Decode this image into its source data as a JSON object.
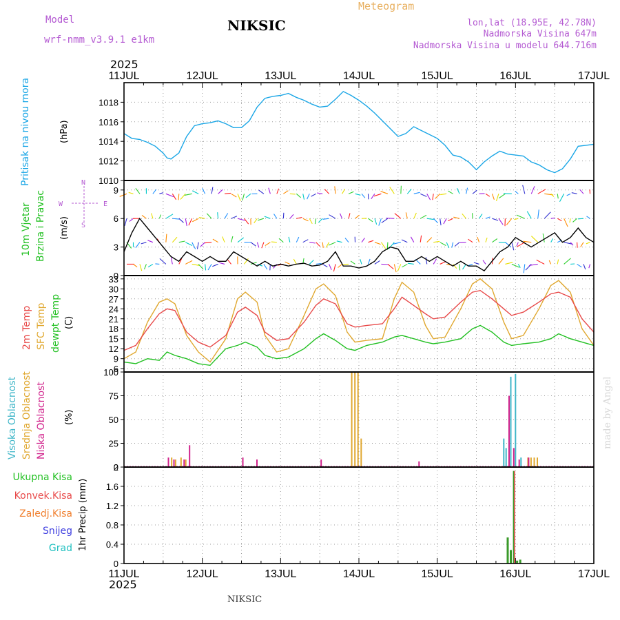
{
  "header": {
    "model_label": "Model",
    "model_name": "wrf-nmm_v3.9.1 e1km",
    "station": "NIKSIC",
    "product": "Meteogram",
    "lonlat": "lon,lat (18.95E, 42.78N)",
    "altitude": "Nadmorska Visina 647m",
    "model_altitude": "Nadmorska Visina u modelu 644.716m",
    "footer_station": "NIKSIC",
    "credit": "made by Angel",
    "year_top": "2025",
    "year_bottom": "2025"
  },
  "colors": {
    "pressure": "#1aa6e6",
    "temp2m": "#e84a4a",
    "sfc": "#e0a830",
    "dewpt": "#22c022",
    "high_cloud": "#3fb6c8",
    "mid_cloud": "#e0a830",
    "low_cloud": "#d0208a",
    "label_purple": "#b45ad2",
    "label_orange": "#e8b060"
  },
  "chart_data": [
    {
      "type": "line",
      "panel": "pressure",
      "ylabel_name": "Pritisak na nivou mora",
      "ylabel_unit": "(hPa)",
      "x_unit": "days since 11JUL 00h",
      "ylim": [
        1010,
        1020
      ],
      "yticks": [
        1010,
        1012,
        1014,
        1016,
        1018
      ],
      "grid": true,
      "series": [
        {
          "name": "Pritisak",
          "x": [
            0,
            0.1,
            0.2,
            0.3,
            0.4,
            0.5,
            0.55,
            0.6,
            0.7,
            0.8,
            0.9,
            1.0,
            1.1,
            1.2,
            1.3,
            1.4,
            1.5,
            1.6,
            1.7,
            1.8,
            1.9,
            2.0,
            2.1,
            2.2,
            2.3,
            2.4,
            2.5,
            2.6,
            2.7,
            2.8,
            2.9,
            3.0,
            3.1,
            3.2,
            3.3,
            3.4,
            3.5,
            3.6,
            3.7,
            3.8,
            3.9,
            4.0,
            4.1,
            4.2,
            4.3,
            4.4,
            4.5,
            4.6,
            4.7,
            4.8,
            4.9,
            5.0,
            5.1,
            5.2,
            5.3,
            5.4,
            5.5,
            5.6,
            5.7,
            5.8,
            5.9,
            6.0
          ],
          "values": [
            1014.8,
            1014.3,
            1014.2,
            1013.9,
            1013.5,
            1012.8,
            1012.3,
            1012.2,
            1012.8,
            1014.5,
            1015.6,
            1015.8,
            1015.9,
            1016.1,
            1015.8,
            1015.4,
            1015.4,
            1016.1,
            1017.5,
            1018.4,
            1018.6,
            1018.7,
            1018.9,
            1018.5,
            1018.2,
            1017.8,
            1017.5,
            1017.6,
            1018.3,
            1019.1,
            1018.7,
            1018.2,
            1017.6,
            1016.9,
            1016.1,
            1015.3,
            1014.5,
            1014.8,
            1015.5,
            1015.1,
            1014.7,
            1014.3,
            1013.6,
            1012.6,
            1012.4,
            1011.9,
            1011.1,
            1011.9,
            1012.5,
            1013.0,
            1012.7,
            1012.6,
            1012.5,
            1011.9,
            1011.6,
            1011.1,
            1010.8,
            1011.2,
            1012.2,
            1013.5,
            1013.6,
            1013.7
          ]
        }
      ]
    },
    {
      "type": "line",
      "panel": "wind",
      "ylabel_name_1": "10m Vjetar",
      "ylabel_name_2": "Brzina i Pravac",
      "ylabel_unit": "(m/s)",
      "compass_n": "N",
      "compass_w": "W",
      "compass_e": "E",
      "compass_s": "S",
      "ylim": [
        0,
        10
      ],
      "yticks": [
        0,
        3,
        6,
        9
      ],
      "grid": true,
      "series": [
        {
          "name": "speed",
          "x": [
            0,
            0.1,
            0.2,
            0.3,
            0.4,
            0.5,
            0.6,
            0.7,
            0.8,
            0.9,
            1.0,
            1.1,
            1.2,
            1.3,
            1.4,
            1.5,
            1.6,
            1.7,
            1.8,
            1.9,
            2.0,
            2.1,
            2.2,
            2.3,
            2.4,
            2.5,
            2.6,
            2.7,
            2.8,
            2.9,
            3.0,
            3.1,
            3.2,
            3.3,
            3.4,
            3.5,
            3.6,
            3.7,
            3.8,
            3.9,
            4.0,
            4.1,
            4.2,
            4.3,
            4.4,
            4.5,
            4.6,
            4.7,
            4.8,
            4.9,
            5.0,
            5.1,
            5.2,
            5.3,
            5.4,
            5.5,
            5.6,
            5.7,
            5.8,
            5.9,
            6.0
          ],
          "values": [
            2.5,
            4.5,
            6.0,
            5.0,
            4.0,
            3.0,
            2.0,
            1.5,
            2.5,
            2.0,
            1.5,
            2.0,
            1.5,
            1.5,
            2.5,
            2.0,
            1.5,
            1.0,
            1.5,
            1.0,
            1.2,
            1.0,
            1.2,
            1.3,
            1.0,
            1.1,
            1.5,
            2.5,
            1.0,
            1.0,
            0.8,
            1.0,
            1.5,
            2.5,
            3.0,
            2.8,
            1.5,
            1.5,
            2.0,
            1.5,
            2.0,
            1.5,
            1.0,
            1.5,
            1.0,
            1.0,
            0.5,
            1.5,
            2.5,
            3.0,
            4.0,
            3.5,
            3.0,
            3.5,
            4.0,
            4.5,
            3.5,
            4.0,
            5.0,
            4.0,
            3.5
          ]
        }
      ]
    },
    {
      "type": "line",
      "panel": "temperature",
      "ylabel_t2": "2m Temp",
      "ylabel_sfc": "SFC Temp",
      "ylabel_dew": "dewpt Temp",
      "ylabel_unit": "(C)",
      "ylim": [
        5,
        34
      ],
      "yticks": [
        6,
        9,
        12,
        15,
        18,
        21,
        24,
        27,
        30,
        33
      ],
      "grid": true,
      "series": [
        {
          "name": "2m Temp",
          "x": [
            0,
            0.15,
            0.3,
            0.45,
            0.55,
            0.65,
            0.8,
            0.95,
            1.1,
            1.3,
            1.45,
            1.55,
            1.7,
            1.8,
            1.95,
            2.1,
            2.3,
            2.45,
            2.55,
            2.7,
            2.85,
            2.95,
            3.1,
            3.3,
            3.45,
            3.55,
            3.7,
            3.85,
            3.95,
            4.1,
            4.3,
            4.45,
            4.55,
            4.7,
            4.85,
            4.95,
            5.1,
            5.3,
            5.45,
            5.55,
            5.7,
            5.85,
            6.0
          ],
          "values": [
            11.5,
            13,
            18,
            22.5,
            24,
            23.5,
            17,
            14,
            12.5,
            16,
            23,
            24.5,
            22,
            17,
            14.5,
            15,
            20,
            25,
            27,
            25.5,
            19.5,
            18.5,
            19,
            19.5,
            24,
            27.5,
            25,
            22.5,
            21,
            21.5,
            26,
            29,
            29.5,
            27,
            24,
            22,
            23,
            26,
            28.5,
            29,
            27.5,
            21,
            17
          ]
        },
        {
          "name": "SFC Temp",
          "x": [
            0,
            0.15,
            0.3,
            0.45,
            0.55,
            0.65,
            0.8,
            0.95,
            1.1,
            1.3,
            1.45,
            1.55,
            1.7,
            1.8,
            1.95,
            2.1,
            2.3,
            2.45,
            2.55,
            2.7,
            2.85,
            2.95,
            3.1,
            3.3,
            3.45,
            3.55,
            3.7,
            3.85,
            3.95,
            4.1,
            4.3,
            4.45,
            4.55,
            4.7,
            4.85,
            4.95,
            5.1,
            5.3,
            5.45,
            5.55,
            5.7,
            5.85,
            6.0
          ],
          "values": [
            9,
            11,
            20,
            26,
            27,
            25.5,
            16,
            11,
            8,
            15,
            27,
            29,
            26,
            16,
            11,
            12,
            22,
            30,
            31.5,
            28,
            17,
            14,
            14.5,
            15,
            27,
            32,
            29,
            19,
            15,
            15.5,
            24,
            31.5,
            33,
            30,
            20,
            15,
            16,
            24,
            31,
            32.5,
            29,
            18,
            13
          ]
        },
        {
          "name": "dewpt Temp",
          "x": [
            0,
            0.15,
            0.3,
            0.45,
            0.55,
            0.65,
            0.8,
            0.95,
            1.1,
            1.3,
            1.45,
            1.55,
            1.7,
            1.8,
            1.95,
            2.1,
            2.3,
            2.45,
            2.55,
            2.7,
            2.85,
            2.95,
            3.1,
            3.3,
            3.45,
            3.55,
            3.7,
            3.85,
            3.95,
            4.1,
            4.3,
            4.45,
            4.55,
            4.7,
            4.85,
            4.95,
            5.1,
            5.3,
            5.45,
            5.55,
            5.7,
            5.85,
            6.0
          ],
          "values": [
            8,
            7.5,
            9,
            8.5,
            11,
            10,
            9,
            7.5,
            7,
            12,
            13,
            14,
            12.5,
            10,
            9,
            9.5,
            12,
            15,
            16.5,
            14.5,
            12,
            11.5,
            13,
            14,
            15.5,
            16,
            15,
            14,
            13.5,
            14,
            15,
            18,
            19,
            17,
            14,
            13,
            13.5,
            14,
            15,
            16.5,
            15,
            14,
            13
          ]
        }
      ]
    },
    {
      "type": "bar",
      "panel": "cloud",
      "ylabel_high": "Visoka Oblacnost",
      "ylabel_mid": "Srednja Oblacnost",
      "ylabel_low": "Niska Oblacnost",
      "ylabel_unit": "(%)",
      "ylim": [
        0,
        100
      ],
      "yticks": [
        0,
        25,
        50,
        75,
        100
      ],
      "grid": true,
      "series": [
        {
          "name": "Visoka",
          "x": [
            4.85,
            4.88,
            4.94,
            5.0,
            5.07
          ],
          "values": [
            30,
            20,
            95,
            98,
            10
          ]
        },
        {
          "name": "Srednja",
          "x": [
            0.6,
            0.65,
            0.72,
            0.78,
            2.9,
            2.94,
            2.98,
            3.02,
            5.15,
            5.19,
            5.23,
            5.27
          ],
          "values": [
            10,
            8,
            10,
            8,
            100,
            100,
            100,
            30,
            10,
            10,
            10,
            10
          ]
        },
        {
          "name": "Niska",
          "x": [
            0.55,
            0.62,
            0.75,
            0.82,
            1.5,
            1.68,
            2.5,
            3.75,
            4.9,
            4.96,
            5.03,
            5.15
          ],
          "values": [
            10,
            8,
            8,
            23,
            10,
            8,
            8,
            6,
            75,
            20,
            8,
            10
          ]
        }
      ]
    },
    {
      "type": "bar",
      "panel": "precip",
      "label_total": "Ukupna Kisa",
      "label_conv": "Konvek.Kisa",
      "label_frozen": "Zaledj.Kisa",
      "label_snow": "Snijeg",
      "label_hail": "Grad",
      "ylabel_unit": "1hr Precip (mm)",
      "ylim": [
        0,
        2
      ],
      "yticks": [
        0,
        0.4,
        0.8,
        1.2,
        1.6,
        2
      ],
      "grid": true,
      "series": [
        {
          "name": "Ukupna Kisa",
          "x": [
            4.9,
            4.94,
            4.98,
            5.02,
            5.06
          ],
          "values": [
            0.54,
            0.28,
            1.92,
            0.06,
            0.08
          ]
        },
        {
          "name": "Konvek.Kisa",
          "x": [
            4.98
          ],
          "values": [
            1.92
          ]
        }
      ]
    }
  ],
  "x_axis": {
    "labels": [
      "11JUL",
      "12JUL",
      "13JUL",
      "14JUL",
      "15JUL",
      "16JUL",
      "17JUL"
    ]
  }
}
